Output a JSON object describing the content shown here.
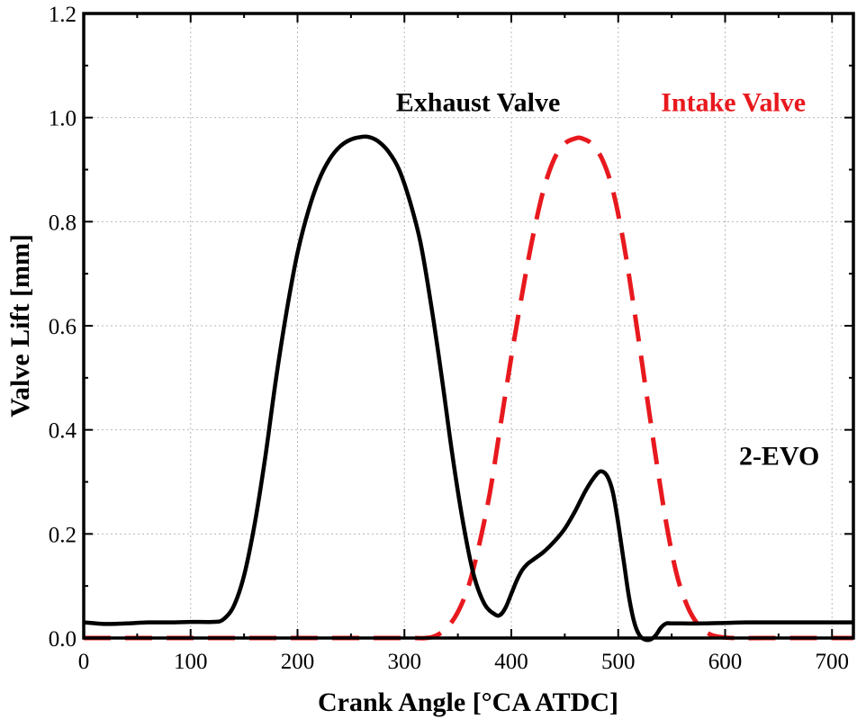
{
  "chart_data": {
    "type": "line",
    "title": "",
    "xlabel": "Crank Angle [°CA ATDC]",
    "ylabel": "Valve Lift [mm]",
    "xlim": [
      0,
      720
    ],
    "ylim": [
      0,
      1.2
    ],
    "grid": true,
    "x_ticks": [
      0,
      100,
      200,
      300,
      400,
      500,
      600,
      700
    ],
    "y_ticks": [
      0.0,
      0.2,
      0.4,
      0.6,
      0.8,
      1.0,
      1.2
    ],
    "x_tick_labels": [
      "0",
      "100",
      "200",
      "300",
      "400",
      "500",
      "600",
      "700"
    ],
    "y_tick_labels": [
      "0.0",
      "0.2",
      "0.4",
      "0.6",
      "0.8",
      "1.0",
      "1.2"
    ],
    "series": [
      {
        "name": "Exhaust Valve",
        "color": "#000000",
        "style": "solid",
        "x": [
          0,
          20,
          40,
          60,
          80,
          100,
          120,
          130,
          140,
          150,
          160,
          170,
          180,
          190,
          200,
          210,
          220,
          230,
          240,
          250,
          260,
          266,
          275,
          285,
          295,
          305,
          315,
          325,
          335,
          345,
          355,
          365,
          375,
          385,
          390,
          395,
          400,
          405,
          410,
          415,
          420,
          430,
          440,
          450,
          460,
          470,
          480,
          485,
          490,
          495,
          500,
          505,
          510,
          515,
          520,
          525,
          530,
          535,
          540,
          545,
          550,
          560,
          580,
          600,
          620,
          640,
          660,
          680,
          700,
          720
        ],
        "y": [
          0.03,
          0.027,
          0.028,
          0.03,
          0.03,
          0.031,
          0.031,
          0.035,
          0.06,
          0.12,
          0.22,
          0.35,
          0.5,
          0.63,
          0.74,
          0.82,
          0.88,
          0.92,
          0.945,
          0.958,
          0.963,
          0.963,
          0.955,
          0.935,
          0.9,
          0.84,
          0.76,
          0.64,
          0.5,
          0.35,
          0.22,
          0.12,
          0.065,
          0.045,
          0.045,
          0.06,
          0.085,
          0.11,
          0.13,
          0.142,
          0.15,
          0.165,
          0.185,
          0.21,
          0.245,
          0.285,
          0.315,
          0.32,
          0.31,
          0.28,
          0.22,
          0.15,
          0.08,
          0.03,
          0.005,
          -0.003,
          -0.003,
          0.005,
          0.02,
          0.028,
          0.028,
          0.028,
          0.028,
          0.029,
          0.03,
          0.03,
          0.03,
          0.03,
          0.03,
          0.03
        ]
      },
      {
        "name": "Intake Valve",
        "color": "#e8191e",
        "style": "dashed",
        "x": [
          0,
          100,
          200,
          300,
          320,
          330,
          340,
          350,
          360,
          370,
          380,
          390,
          400,
          410,
          420,
          430,
          440,
          450,
          460,
          466,
          475,
          485,
          495,
          505,
          515,
          525,
          535,
          545,
          555,
          565,
          575,
          585,
          595,
          610,
          640,
          680,
          720
        ],
        "y": [
          0.0,
          0.0,
          0.0,
          0.0,
          0.0,
          0.005,
          0.02,
          0.05,
          0.1,
          0.18,
          0.28,
          0.41,
          0.54,
          0.66,
          0.77,
          0.86,
          0.92,
          0.95,
          0.96,
          0.96,
          0.95,
          0.92,
          0.86,
          0.76,
          0.63,
          0.49,
          0.35,
          0.22,
          0.12,
          0.06,
          0.025,
          0.008,
          0.002,
          0.0,
          0.0,
          0.0,
          0.0
        ]
      }
    ],
    "annotations": [
      {
        "text": "Exhaust Valve",
        "color": "#000000",
        "x": 292,
        "y": 1.03
      },
      {
        "text": "Intake Valve",
        "color": "#e8191e",
        "x": 540,
        "y": 1.03
      },
      {
        "text": "2-EVO",
        "color": "#000000",
        "x": 613,
        "y": 0.35
      }
    ]
  }
}
